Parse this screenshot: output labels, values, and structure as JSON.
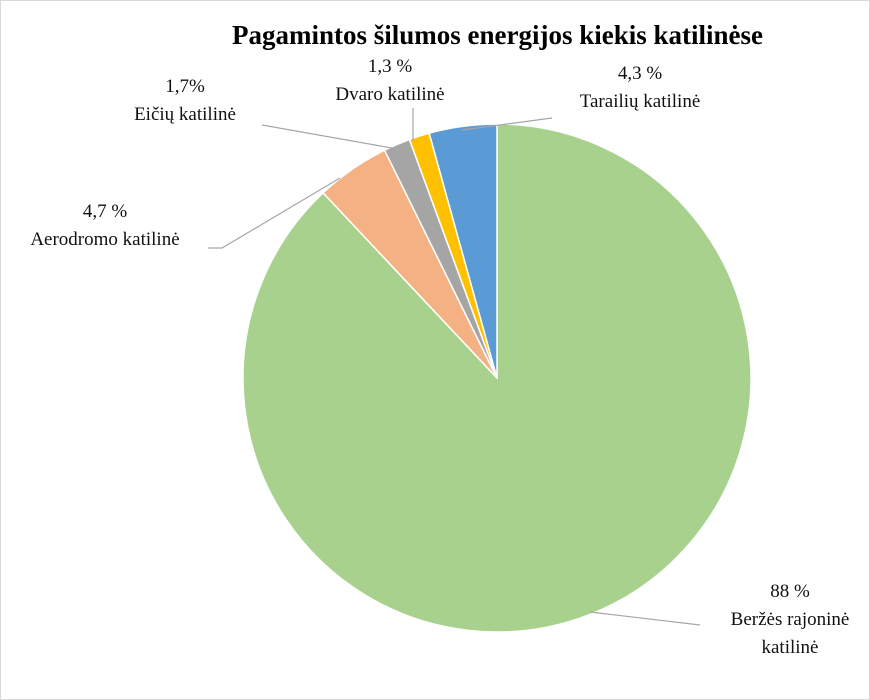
{
  "chart_data": {
    "type": "pie",
    "title": "Pagamintos šilumos energijos kiekis katilinėse",
    "categories": [
      "Beržės rajoninė katilinė",
      "Aerodromo katilinė",
      "Eičių katilinė",
      "Dvaro katilinė",
      "Tarailių katilinė"
    ],
    "values": [
      88,
      4.7,
      1.7,
      1.3,
      4.3
    ],
    "value_labels": [
      "88 %",
      "4,7 %",
      "1,7%",
      "1,3 %",
      "4,3 %"
    ],
    "colors": [
      "#a9d18e",
      "#f4b183",
      "#a5a5a5",
      "#ffc000",
      "#5b9bd5"
    ]
  }
}
